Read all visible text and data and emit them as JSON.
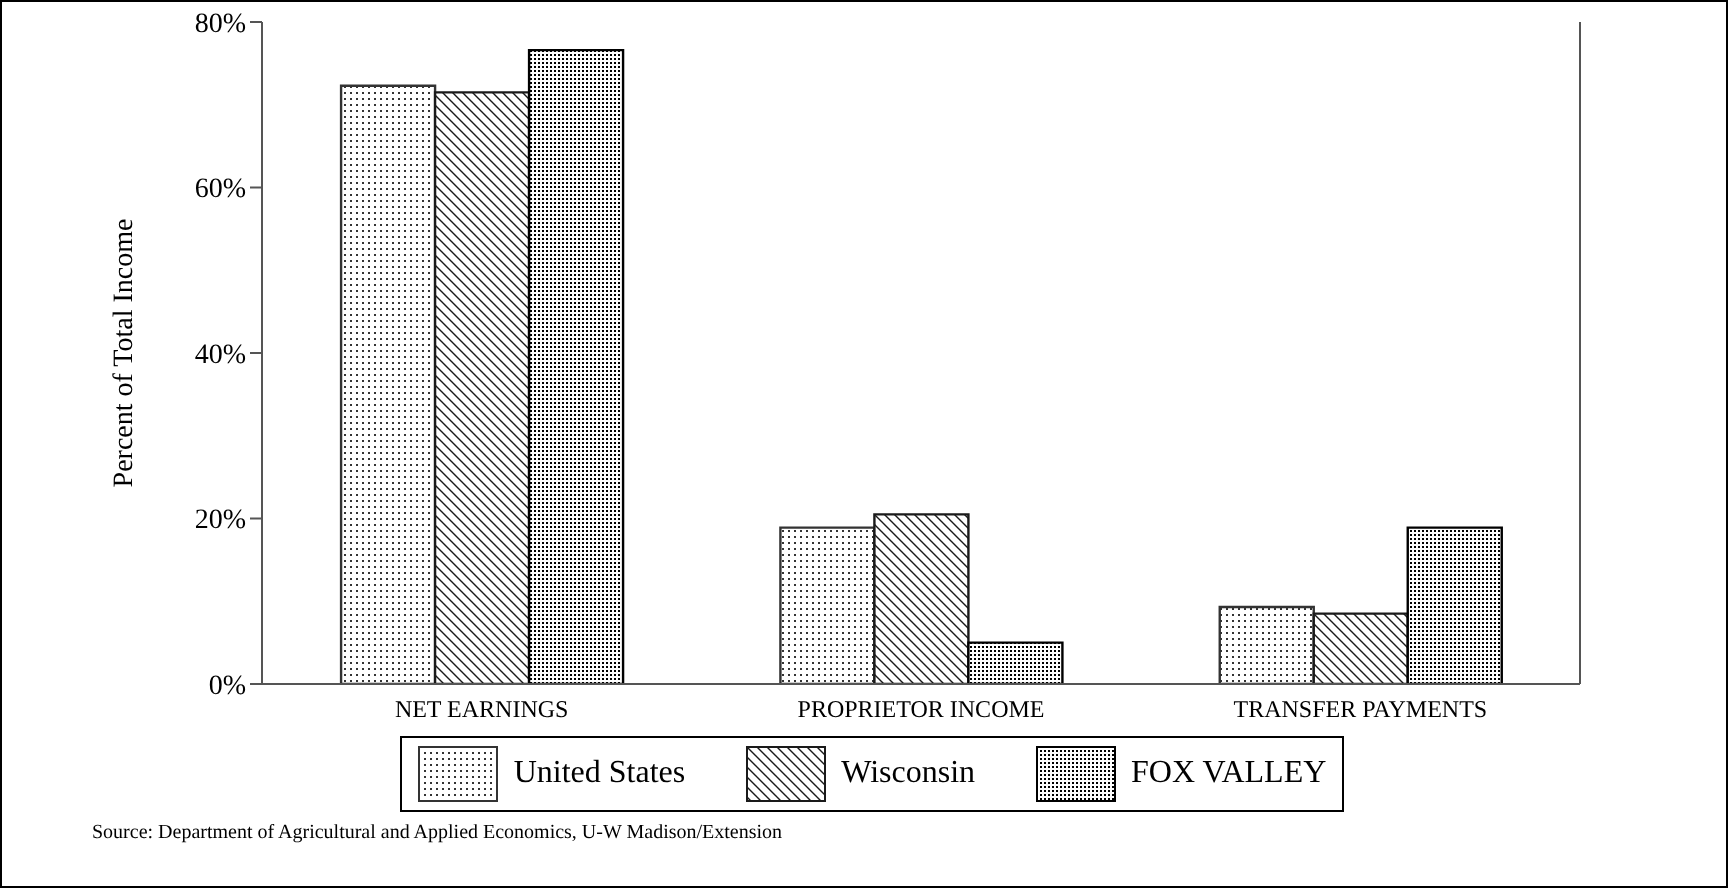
{
  "chart_data": {
    "type": "bar",
    "ylabel": "Percent of Total Income",
    "categories": [
      "NET EARNINGS",
      "PROPRIETOR INCOME",
      "TRANSFER PAYMENTS"
    ],
    "series": [
      {
        "name": "United States",
        "color": "#333333",
        "values": [
          72.3,
          18.9,
          9.3
        ]
      },
      {
        "name": "Wisconsin",
        "color": "#1a1a1a",
        "values": [
          71.5,
          20.5,
          8.5
        ]
      },
      {
        "name": "FOX VALLEY",
        "color": "#000000",
        "values": [
          76.6,
          5.0,
          18.9
        ]
      }
    ],
    "ylim": [
      0,
      80
    ],
    "yticks": [
      {
        "value": 0,
        "label": "0%"
      },
      {
        "value": 20,
        "label": "20%"
      },
      {
        "value": 40,
        "label": "40%"
      },
      {
        "value": 60,
        "label": "60%"
      },
      {
        "value": 80,
        "label": "80%"
      }
    ],
    "grid": false,
    "legend": "bottom",
    "annotations": [
      "Source:  Department of Agricultural and Applied Economics, U-W Madison/Extension"
    ]
  }
}
